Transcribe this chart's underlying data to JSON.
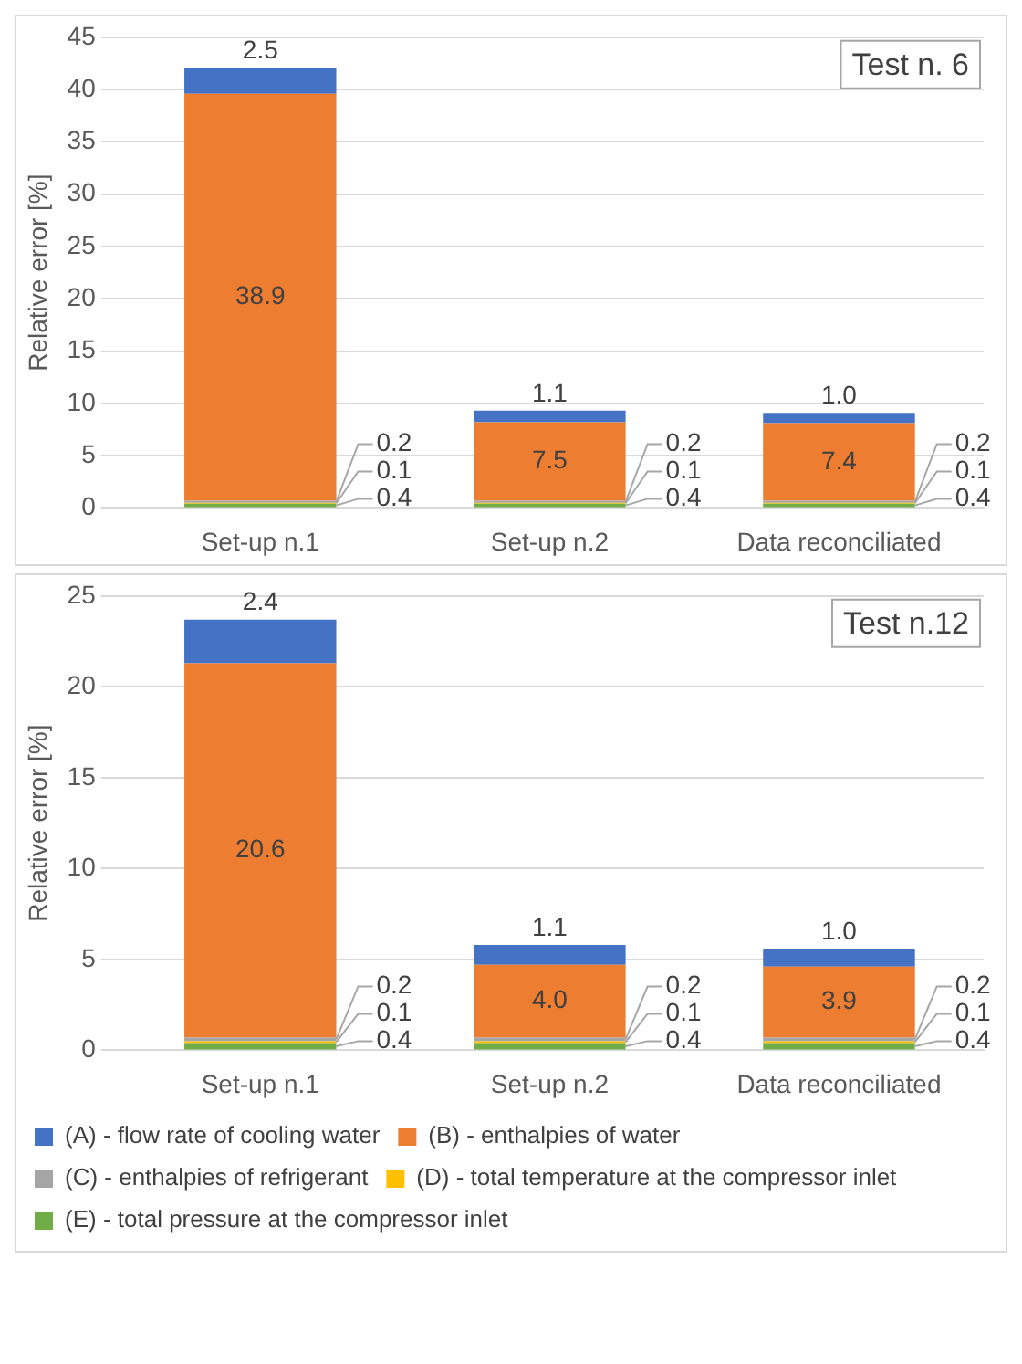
{
  "chart_data": [
    {
      "type": "bar",
      "title": "Test n. 6",
      "ylabel": "Relative error [%]",
      "stacked": true,
      "categories": [
        "Set-up n.1",
        "Set-up n.2",
        "Data reconciliated"
      ],
      "ylim": [
        0,
        45
      ],
      "yticks": [
        0,
        5,
        10,
        15,
        20,
        25,
        30,
        35,
        40,
        45
      ],
      "grid": "y",
      "legend": false,
      "series": [
        {
          "color": "#70ad47",
          "values": [
            0.4,
            0.4,
            0.4
          ],
          "value_labels": [
            "0.4",
            "0.4",
            "0.4"
          ]
        },
        {
          "color": "#ffc000",
          "values": [
            0.1,
            0.1,
            0.1
          ],
          "value_labels": [
            "0.1",
            "0.1",
            "0.1"
          ]
        },
        {
          "color": "#a5a5a5",
          "values": [
            0.2,
            0.2,
            0.2
          ],
          "value_labels": [
            "0.2",
            "0.2",
            "0.2"
          ]
        },
        {
          "color": "#ed7d31",
          "values": [
            38.9,
            7.5,
            7.4
          ],
          "value_labels": [
            "38.9",
            "7.5",
            "7.4"
          ]
        },
        {
          "color": "#4472c4",
          "values": [
            2.5,
            1.1,
            1.0
          ],
          "value_labels": [
            "2.5",
            "1.1",
            "1.0"
          ]
        }
      ]
    },
    {
      "type": "bar",
      "title": "Test n.12",
      "ylabel": "Relative error [%]",
      "stacked": true,
      "categories": [
        "Set-up n.1",
        "Set-up n.2",
        "Data reconciliated"
      ],
      "ylim": [
        0,
        25
      ],
      "yticks": [
        0,
        5,
        10,
        15,
        20,
        25
      ],
      "grid": "y",
      "legend": "bottom",
      "series": [
        {
          "name": "(E) - total pressure at the compressor inlet",
          "color": "#70ad47",
          "values": [
            0.4,
            0.4,
            0.4
          ],
          "value_labels": [
            "0.4",
            "0.4",
            "0.4"
          ]
        },
        {
          "name": "(D) - total temperature at the compressor inlet",
          "color": "#ffc000",
          "values": [
            0.1,
            0.1,
            0.1
          ],
          "value_labels": [
            "0.1",
            "0.1",
            "0.1"
          ]
        },
        {
          "name": "(C) - enthalpies of refrigerant",
          "color": "#a5a5a5",
          "values": [
            0.2,
            0.2,
            0.2
          ],
          "value_labels": [
            "0.2",
            "0.2",
            "0.2"
          ]
        },
        {
          "name": "(B) - enthalpies of water",
          "color": "#ed7d31",
          "values": [
            20.6,
            4.0,
            3.9
          ],
          "value_labels": [
            "20.6",
            "4.0",
            "3.9"
          ]
        },
        {
          "name": "(A) - flow rate of cooling water",
          "color": "#4472c4",
          "values": [
            2.4,
            1.1,
            1.0
          ],
          "value_labels": [
            "2.4",
            "1.1",
            "1.0"
          ]
        }
      ]
    }
  ]
}
